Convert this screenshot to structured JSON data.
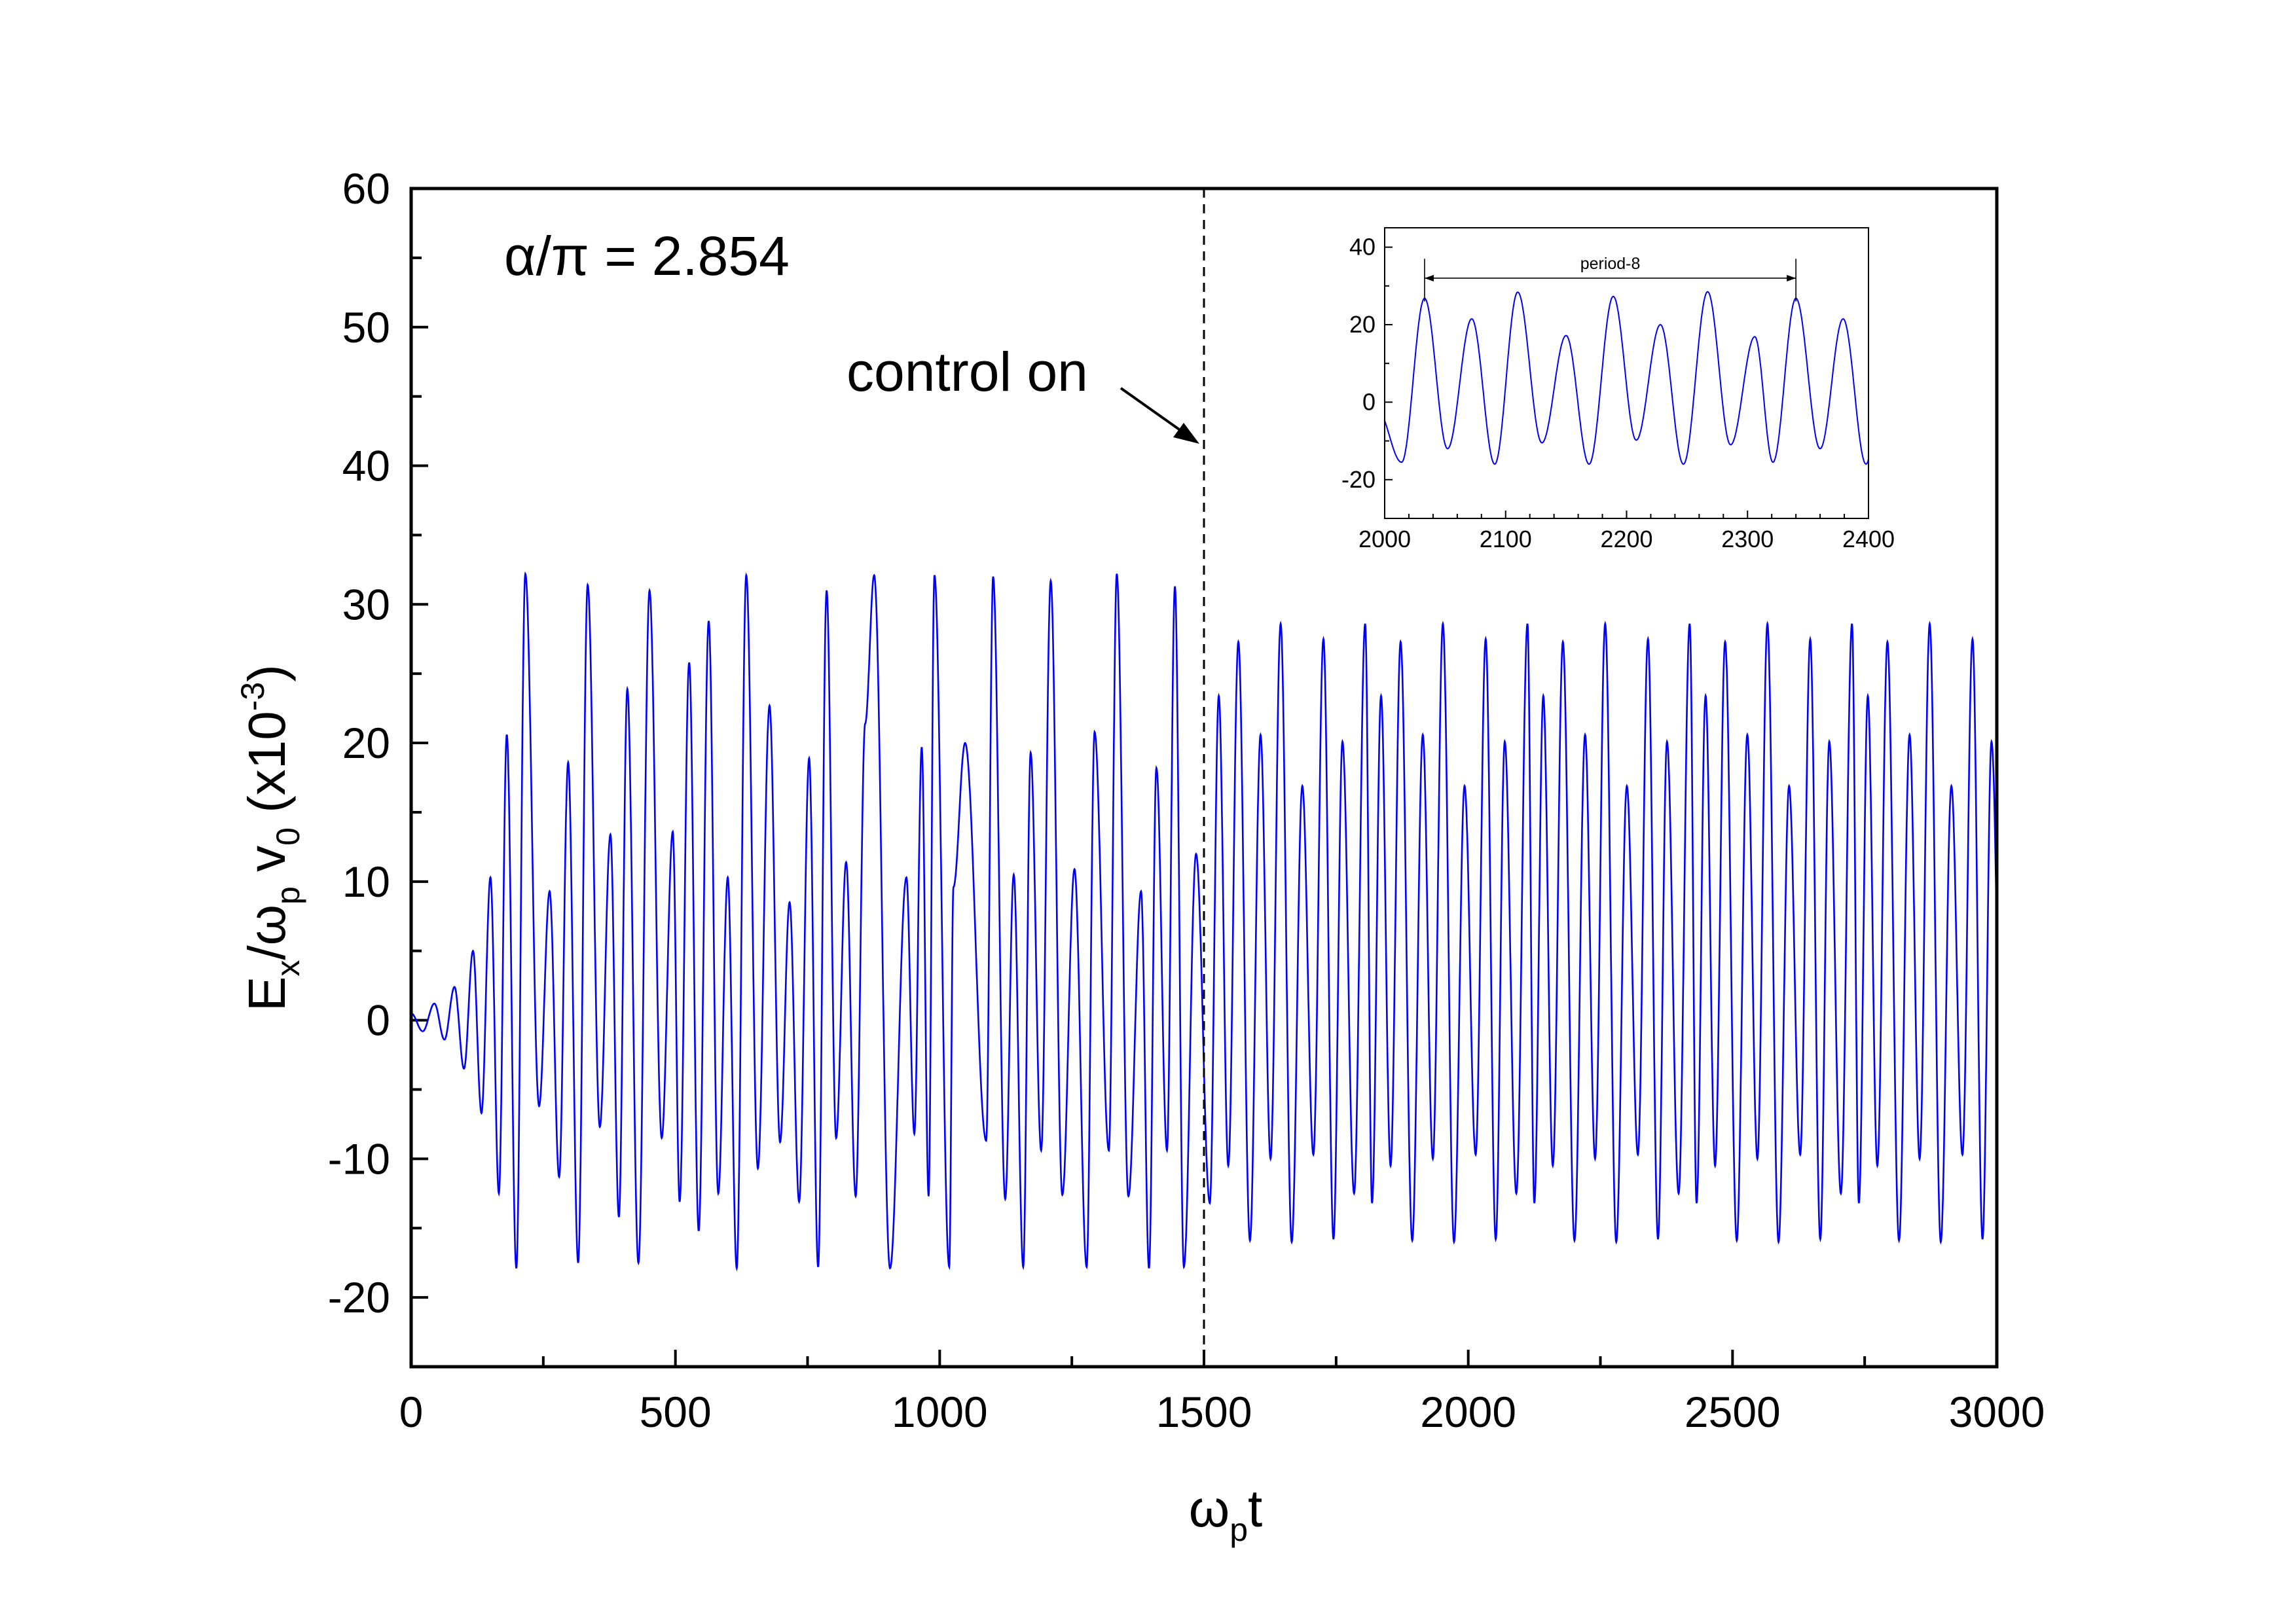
{
  "chart_data": [
    {
      "type": "line",
      "title": "",
      "xlabel": "ωpt",
      "xlabel_parts": {
        "main": "ω",
        "sub": "p",
        "tail": "t"
      },
      "ylabel": "Ex/ωpv0 (x10-3)",
      "ylabel_parts": {
        "e": "E",
        "e_sub": "x",
        "slash": "/ω",
        "w_sub": "p",
        "v": " v",
        "v_sub": "0",
        "unit": " (x10",
        "exp": "-3",
        "close": ")"
      },
      "xlim": [
        0,
        3000
      ],
      "ylim": [
        -25,
        60
      ],
      "x_ticks": [
        0,
        500,
        1000,
        1500,
        2000,
        2500,
        3000
      ],
      "y_ticks": [
        -20,
        -10,
        0,
        10,
        20,
        30,
        40,
        50,
        60
      ],
      "grid": false,
      "line_color": "#0000ff",
      "annotation_param": "α/π = 2.854",
      "annotation_control": "control on",
      "control_on_x": 1500,
      "series": [
        {
          "peaks_before_control": [
            [
              0,
              0.5
            ],
            [
              44,
              1.2
            ],
            [
              82,
              2.4
            ],
            [
              117,
              5.0
            ],
            [
              150,
              10.3
            ],
            [
              181,
              20.6
            ],
            [
              216,
              32.2
            ],
            [
              262,
              9.3
            ],
            [
              297,
              18.6
            ],
            [
              334,
              31.4
            ],
            [
              377,
              13.4
            ],
            [
              409,
              23.9
            ],
            [
              451,
              31.0
            ],
            [
              495,
              13.6
            ],
            [
              526,
              25.8
            ],
            [
              563,
              28.8
            ],
            [
              599,
              10.3
            ],
            [
              634,
              32.1
            ],
            [
              678,
              22.7
            ],
            [
              716,
              8.5
            ],
            [
              753,
              18.9
            ],
            [
              786,
              31.0
            ],
            [
              823,
              11.4
            ],
            [
              859,
              21.4
            ],
            [
              876,
              32.1
            ],
            [
              937,
              10.3
            ],
            [
              966,
              19.7
            ],
            [
              990,
              32.1
            ],
            [
              1026,
              9.6
            ],
            [
              1048,
              20.0
            ],
            [
              1101,
              32.0
            ],
            [
              1140,
              10.5
            ],
            [
              1172,
              19.3
            ],
            [
              1210,
              31.7
            ],
            [
              1255,
              10.9
            ],
            [
              1293,
              20.8
            ],
            [
              1335,
              32.2
            ],
            [
              1381,
              9.3
            ],
            [
              1410,
              18.2
            ],
            [
              1445,
              31.3
            ],
            [
              1485,
              12.0
            ]
          ],
          "troughs_before_control": [
            [
              22,
              -0.8
            ],
            [
              63,
              -1.4
            ],
            [
              100,
              -3.5
            ],
            [
              133,
              -6.7
            ],
            [
              166,
              -12.5
            ],
            [
              199,
              -17.9
            ],
            [
              242,
              -6.2
            ],
            [
              280,
              -11.3
            ],
            [
              316,
              -17.5
            ],
            [
              357,
              -7.7
            ],
            [
              393,
              -14.2
            ],
            [
              430,
              -17.5
            ],
            [
              474,
              -8.5
            ],
            [
              508,
              -13.1
            ],
            [
              544,
              -15.2
            ],
            [
              581,
              -12.5
            ],
            [
              616,
              -17.9
            ],
            [
              656,
              -10.7
            ],
            [
              698,
              -8.8
            ],
            [
              734,
              -13.1
            ],
            [
              770,
              -17.8
            ],
            [
              804,
              -8.5
            ],
            [
              841,
              -12.7
            ],
            [
              906,
              -17.9
            ],
            [
              952,
              -8.2
            ],
            [
              979,
              -12.7
            ],
            [
              1018,
              -17.8
            ],
            [
              1088,
              -8.7
            ],
            [
              1124,
              -12.9
            ],
            [
              1158,
              -17.8
            ],
            [
              1192,
              -9.4
            ],
            [
              1232,
              -12.6
            ],
            [
              1278,
              -17.8
            ],
            [
              1320,
              -9.4
            ],
            [
              1357,
              -12.7
            ],
            [
              1396,
              -17.9
            ],
            [
              1430,
              -9.4
            ],
            [
              1462,
              -17.8
            ]
          ],
          "control_period": 307,
          "peaks_after_control_one_period": [
            [
              1528,
              23.4
            ],
            [
              1565,
              27.3
            ],
            [
              1607,
              20.6
            ],
            [
              1645,
              28.6
            ],
            [
              1686,
              16.9
            ],
            [
              1726,
              27.5
            ],
            [
              1762,
              20.1
            ],
            [
              1805,
              28.6
            ]
          ],
          "troughs_after_control_one_period": [
            [
              1511,
              -13.2
            ],
            [
              1546,
              -10.5
            ],
            [
              1587,
              -15.9
            ],
            [
              1626,
              -10.0
            ],
            [
              1666,
              -16.0
            ],
            [
              1707,
              -9.7
            ],
            [
              1745,
              -15.8
            ],
            [
              1784,
              -12.5
            ]
          ],
          "amplitude_note": "After control on, the signal repeats with period-8"
        }
      ]
    },
    {
      "type": "line",
      "title": "",
      "xlabel": "",
      "ylabel": "",
      "xlim": [
        2000,
        2400
      ],
      "ylim": [
        -30,
        45
      ],
      "x_ticks": [
        2000,
        2100,
        2200,
        2300,
        2400
      ],
      "y_ticks": [
        -20,
        0,
        20,
        40
      ],
      "grid": false,
      "line_color": "#0000ff",
      "annotation": "period-8",
      "period_marker": [
        2033,
        2340
      ],
      "series": [
        {
          "peaks": [
            [
              2033,
              26.8
            ],
            [
              2072,
              21.5
            ],
            [
              2110,
              28.4
            ],
            [
              2150,
              17.2
            ],
            [
              2189,
              27.3
            ],
            [
              2228,
              20.0
            ],
            [
              2267,
              28.5
            ],
            [
              2306,
              16.9
            ],
            [
              2340,
              26.8
            ],
            [
              2379,
              21.5
            ]
          ],
          "troughs": [
            [
              2014,
              -15.5
            ],
            [
              2052,
              -12.0
            ],
            [
              2091,
              -16.0
            ],
            [
              2130,
              -10.5
            ],
            [
              2169,
              -16.0
            ],
            [
              2208,
              -9.8
            ],
            [
              2247,
              -16.0
            ],
            [
              2286,
              -11.0
            ],
            [
              2321,
              -15.5
            ],
            [
              2360,
              -12.0
            ],
            [
              2398,
              -16.0
            ]
          ]
        }
      ]
    }
  ]
}
